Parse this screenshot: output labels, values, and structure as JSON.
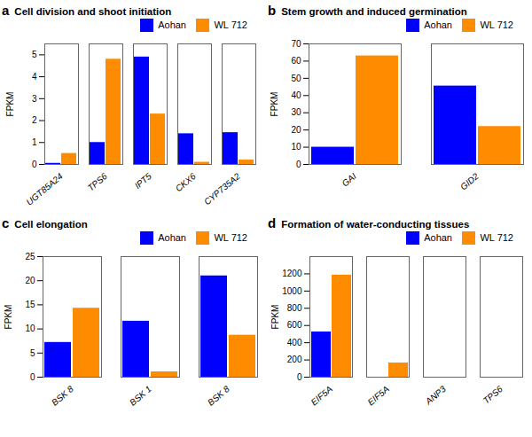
{
  "chart_data": [
    {
      "type": "bar",
      "title": "Cell division and shoot initiation",
      "annotations": [
        "a"
      ],
      "categories": [
        "UGT85A24",
        "TPS6",
        "IPT5",
        "CKX6",
        "CYP735A2"
      ],
      "series": [
        {
          "name": "Aohan",
          "color": "#0000FF",
          "values": [
            0.05,
            1.0,
            4.9,
            1.4,
            1.45
          ]
        },
        {
          "name": "WL 712",
          "color": "#FF8C00",
          "values": [
            0.5,
            4.8,
            2.3,
            0.1,
            0.2
          ]
        }
      ],
      "ylabel": "FPKM",
      "ylim": [
        0,
        5.5
      ],
      "yticks": [
        0,
        1,
        2,
        3,
        4,
        5
      ],
      "legend": "upper right"
    },
    {
      "type": "bar",
      "title": "Stem growth and induced germination",
      "annotations": [
        "b"
      ],
      "categories": [
        "GAI",
        "GID2"
      ],
      "series": [
        {
          "name": "Aohan",
          "color": "#0000FF",
          "values": [
            10.0,
            45.5
          ]
        },
        {
          "name": "WL 712",
          "color": "#FF8C00",
          "values": [
            63.0,
            22.0
          ]
        }
      ],
      "ylabel": "FPKM",
      "ylim": [
        0,
        70
      ],
      "yticks": [
        0,
        10,
        20,
        30,
        40,
        50,
        60,
        70
      ],
      "legend": "upper right"
    },
    {
      "type": "bar",
      "title": "Cell elongation",
      "annotations": [
        "c"
      ],
      "categories": [
        "BSK 8",
        "BSK 1",
        "BSK 8"
      ],
      "series": [
        {
          "name": "Aohan",
          "color": "#0000FF",
          "values": [
            7.2,
            11.6,
            21.0
          ]
        },
        {
          "name": "WL 712",
          "color": "#FF8C00",
          "values": [
            14.3,
            1.1,
            8.7
          ]
        }
      ],
      "ylabel": "FPKM",
      "ylim": [
        0,
        25
      ],
      "yticks": [
        0,
        5,
        10,
        15,
        20,
        25
      ],
      "legend": "upper right"
    },
    {
      "type": "bar",
      "title": "Formation of water-conducting tissues",
      "annotations": [
        "d"
      ],
      "categories": [
        "EIF5A",
        "EIF5A",
        "ANP3",
        "TPS6"
      ],
      "series": [
        {
          "name": "Aohan",
          "color": "#0000FF",
          "values": [
            525.0,
            0.0,
            0.0,
            0.0
          ]
        },
        {
          "name": "WL 712",
          "color": "#FF8C00",
          "values": [
            1185.0,
            165.0,
            0.0,
            0.0
          ]
        }
      ],
      "ylabel": "FPKM",
      "ylim": [
        0,
        1400
      ],
      "yticks": [
        0,
        200,
        400,
        600,
        800,
        1000,
        1200
      ],
      "legend": "upper right"
    }
  ]
}
